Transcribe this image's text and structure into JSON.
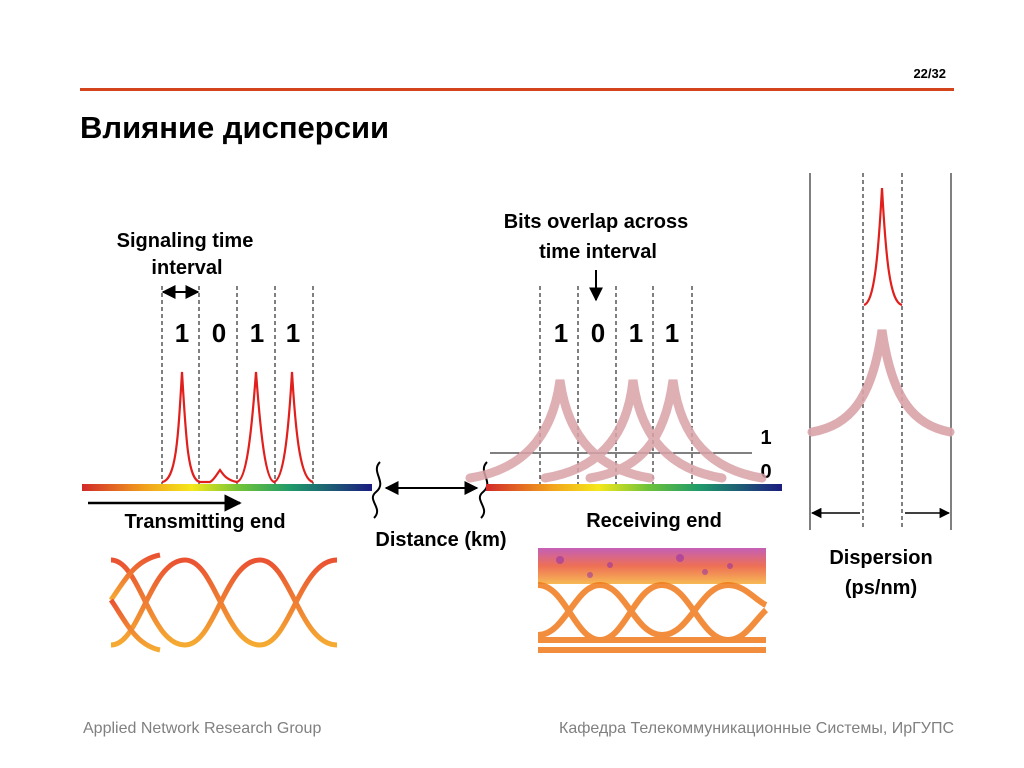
{
  "header": {
    "page_number": "22/32",
    "title": "Влияние дисперсии"
  },
  "diagram": {
    "signaling_label_line1": "Signaling time",
    "signaling_label_line2": "interval",
    "bits_tx": [
      "1",
      "0",
      "1",
      "1"
    ],
    "transmitting_label": "Transmitting end",
    "distance_label": "Distance (km)",
    "overlap_label_line1": "Bits overlap across",
    "overlap_label_line2": "time interval",
    "bits_rx": [
      "1",
      "0",
      "1",
      "1"
    ],
    "level_one": "1",
    "level_zero": "0",
    "receiving_label": "Receiving end",
    "dispersion_label_line1": "Dispersion",
    "dispersion_label_line2": "(ps/nm)"
  },
  "colors": {
    "accent": "#d4441c",
    "pulse": "#e0201c",
    "broadened": "#d9a3a8"
  },
  "footer": {
    "left": "Applied Network Research Group",
    "right": "Кафедра Телекоммуникационные Системы, ИрГУПС"
  }
}
